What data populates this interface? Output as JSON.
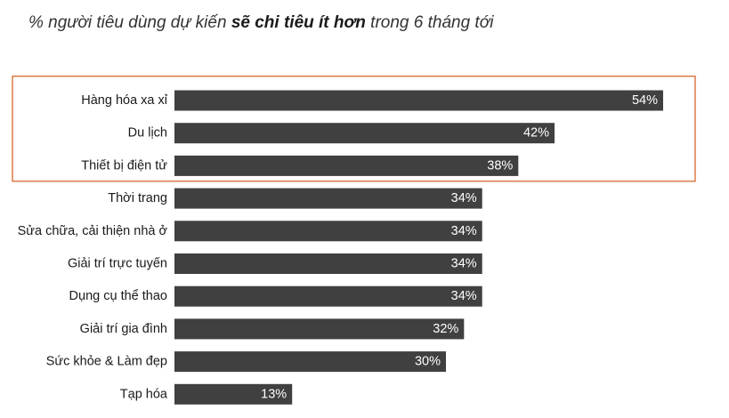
{
  "title": {
    "prefix": "% người tiêu dùng dự kiến ",
    "emphasis": "sẽ chi tiêu ít hơn",
    "suffix": " trong 6 tháng tới"
  },
  "colors": {
    "bar": "#404040",
    "value_label": "#ffffff",
    "highlight_box": "#d9672b"
  },
  "chart_data": {
    "type": "bar",
    "orientation": "horizontal",
    "categories": [
      "Hàng hóa xa xỉ",
      "Du lịch",
      "Thiết bị điện tử",
      "Thời trang",
      "Sửa chữa, cải thiện nhà ở",
      "Giải trí trực tuyến",
      "Dụng cụ thể thao",
      "Giải trí gia đình",
      "Sức khỏe & Làm đẹp",
      "Tạp hóa"
    ],
    "values": [
      54,
      42,
      38,
      34,
      34,
      34,
      34,
      32,
      30,
      13
    ],
    "value_labels": [
      "54%",
      "42%",
      "38%",
      "34%",
      "34%",
      "34%",
      "34%",
      "32%",
      "30%",
      "13%"
    ],
    "unit": "%",
    "xlim": [
      0,
      54
    ],
    "grid": false,
    "legend": "none",
    "highlighted_categories": [
      "Hàng hóa xa xỉ",
      "Du lịch",
      "Thiết bị điện tử"
    ]
  }
}
